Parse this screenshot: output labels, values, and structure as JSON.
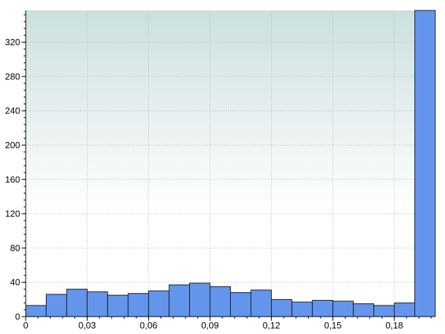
{
  "chart_data": {
    "type": "bar",
    "title": "",
    "xlabel": "",
    "ylabel": "",
    "bin_width": 0.01,
    "bins_start": [
      0,
      0.01,
      0.02,
      0.03,
      0.04,
      0.05,
      0.06,
      0.07,
      0.08,
      0.09,
      0.1,
      0.11,
      0.12,
      0.13,
      0.14,
      0.15,
      0.16,
      0.17,
      0.18,
      0.19
    ],
    "values": [
      13,
      26,
      32,
      29,
      25,
      27,
      30,
      37,
      39,
      35,
      28,
      31,
      20,
      17,
      19,
      18,
      15,
      13,
      16,
      357
    ],
    "xlim": [
      0,
      0.2
    ],
    "ylim": [
      0,
      357
    ],
    "xticks": [
      0,
      0.03,
      0.06,
      0.09,
      0.12,
      0.15,
      0.18
    ],
    "xtick_labels": [
      "0",
      "0,03",
      "0,06",
      "0,09",
      "0,12",
      "0,15",
      "0,18"
    ],
    "yticks": [
      0,
      40,
      80,
      120,
      160,
      200,
      240,
      280,
      320
    ],
    "ytick_labels": [
      "0",
      "40",
      "80",
      "120",
      "160",
      "200",
      "240",
      "280",
      "320"
    ],
    "grid": true,
    "bar_color": "#6495ED",
    "bar_edge_color": "#1a1a1a",
    "background_gradient": [
      "#cbdfdf",
      "#ffffff"
    ]
  }
}
